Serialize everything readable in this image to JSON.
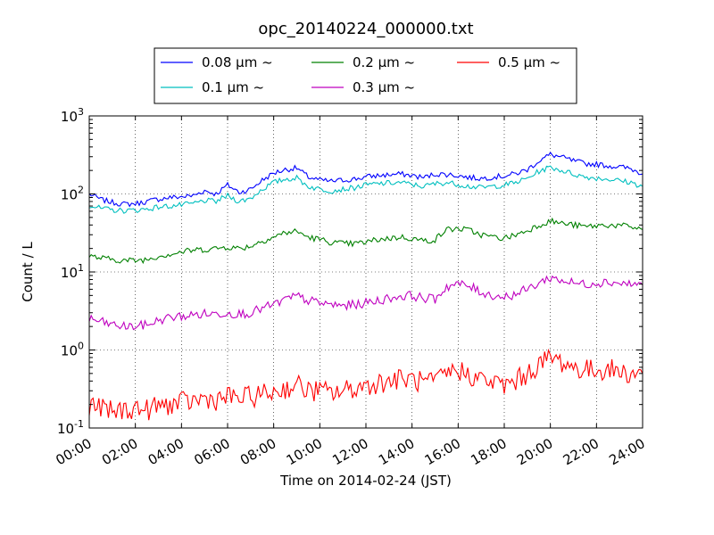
{
  "chart_data": {
    "type": "line",
    "title": "opc_20140224_000000.txt",
    "xlabel": "Time on 2014-02-24 (JST)",
    "ylabel": "Count / L",
    "x_unit": "hours",
    "xlim": [
      0,
      24
    ],
    "y_scale": "log",
    "ylim": [
      0.1,
      1000
    ],
    "grid": true,
    "legend_position": "top-center",
    "x_ticks": [
      {
        "value": 0,
        "label": "00:00"
      },
      {
        "value": 2,
        "label": "02:00"
      },
      {
        "value": 4,
        "label": "04:00"
      },
      {
        "value": 6,
        "label": "06:00"
      },
      {
        "value": 8,
        "label": "08:00"
      },
      {
        "value": 10,
        "label": "10:00"
      },
      {
        "value": 12,
        "label": "12:00"
      },
      {
        "value": 14,
        "label": "14:00"
      },
      {
        "value": 16,
        "label": "16:00"
      },
      {
        "value": 18,
        "label": "18:00"
      },
      {
        "value": 20,
        "label": "20:00"
      },
      {
        "value": 22,
        "label": "22:00"
      },
      {
        "value": 24,
        "label": "24:00"
      }
    ],
    "y_ticks": [
      {
        "value": 0.1,
        "base": "10",
        "exp": "-1"
      },
      {
        "value": 1,
        "base": "10",
        "exp": "0"
      },
      {
        "value": 10,
        "base": "10",
        "exp": "1"
      },
      {
        "value": 100,
        "base": "10",
        "exp": "2"
      },
      {
        "value": 1000,
        "base": "10",
        "exp": "3"
      }
    ],
    "x": [
      0,
      0.5,
      1,
      1.5,
      2,
      2.5,
      3,
      3.5,
      4,
      4.5,
      5,
      5.5,
      6,
      6.5,
      7,
      7.5,
      8,
      8.5,
      9,
      9.5,
      10,
      10.5,
      11,
      11.5,
      12,
      12.5,
      13,
      13.5,
      14,
      14.5,
      15,
      15.5,
      16,
      16.5,
      17,
      17.5,
      18,
      18.5,
      19,
      19.5,
      20,
      20.5,
      21,
      21.5,
      22,
      22.5,
      23,
      23.5,
      24
    ],
    "series": [
      {
        "name": "0.08 μm ~",
        "color": "#0000ff",
        "values": [
          100,
          85,
          78,
          74,
          75,
          80,
          86,
          90,
          92,
          95,
          110,
          100,
          130,
          105,
          115,
          150,
          185,
          205,
          215,
          165,
          150,
          145,
          150,
          155,
          165,
          172,
          176,
          180,
          172,
          162,
          180,
          178,
          172,
          162,
          158,
          165,
          170,
          182,
          205,
          265,
          320,
          295,
          265,
          245,
          240,
          230,
          222,
          210,
          180
        ]
      },
      {
        "name": "0.1 μm ~",
        "color": "#00bfbf",
        "values": [
          72,
          65,
          62,
          61,
          62,
          64,
          68,
          70,
          72,
          75,
          82,
          80,
          95,
          80,
          88,
          115,
          140,
          155,
          160,
          125,
          115,
          110,
          115,
          120,
          130,
          135,
          138,
          140,
          132,
          125,
          135,
          140,
          133,
          125,
          120,
          125,
          130,
          140,
          158,
          195,
          220,
          200,
          180,
          165,
          160,
          155,
          148,
          140,
          125
        ]
      },
      {
        "name": "0.2 μm ~",
        "color": "#008000",
        "values": [
          16,
          15,
          14.5,
          14,
          14,
          14.5,
          16,
          17,
          18,
          19,
          19.5,
          20,
          21,
          20,
          21.5,
          25,
          28,
          32,
          33,
          28,
          26,
          24,
          23,
          23,
          24,
          26,
          27,
          28,
          27,
          25,
          26,
          35,
          36,
          34,
          30,
          28,
          27,
          30,
          34,
          40,
          45,
          42,
          40,
          38,
          39,
          40,
          39,
          38,
          35
        ]
      },
      {
        "name": "0.3 μm ~",
        "color": "#bf00bf",
        "values": [
          2.5,
          2.3,
          2.1,
          2,
          2,
          2.1,
          2.4,
          2.6,
          2.7,
          2.8,
          2.9,
          2.9,
          3,
          2.9,
          3,
          3.4,
          3.8,
          4.4,
          4.9,
          4.3,
          4,
          3.8,
          3.7,
          3.8,
          4,
          4.3,
          4.6,
          4.9,
          5,
          4.6,
          4.5,
          6.5,
          7,
          6.5,
          5.5,
          5,
          4.8,
          5.2,
          6,
          7.2,
          8.5,
          7.8,
          7.2,
          7,
          7.3,
          7.5,
          7.2,
          7,
          6.8
        ]
      },
      {
        "name": "0.5 μm ~",
        "color": "#ff0000",
        "values": [
          0.2,
          0.18,
          0.16,
          0.17,
          0.18,
          0.17,
          0.19,
          0.2,
          0.21,
          0.22,
          0.24,
          0.23,
          0.25,
          0.24,
          0.25,
          0.27,
          0.29,
          0.32,
          0.36,
          0.3,
          0.3,
          0.28,
          0.3,
          0.32,
          0.35,
          0.38,
          0.4,
          0.42,
          0.42,
          0.38,
          0.38,
          0.5,
          0.55,
          0.48,
          0.42,
          0.38,
          0.35,
          0.4,
          0.5,
          0.65,
          0.8,
          0.7,
          0.6,
          0.55,
          0.55,
          0.58,
          0.52,
          0.5,
          0.5
        ]
      }
    ]
  }
}
